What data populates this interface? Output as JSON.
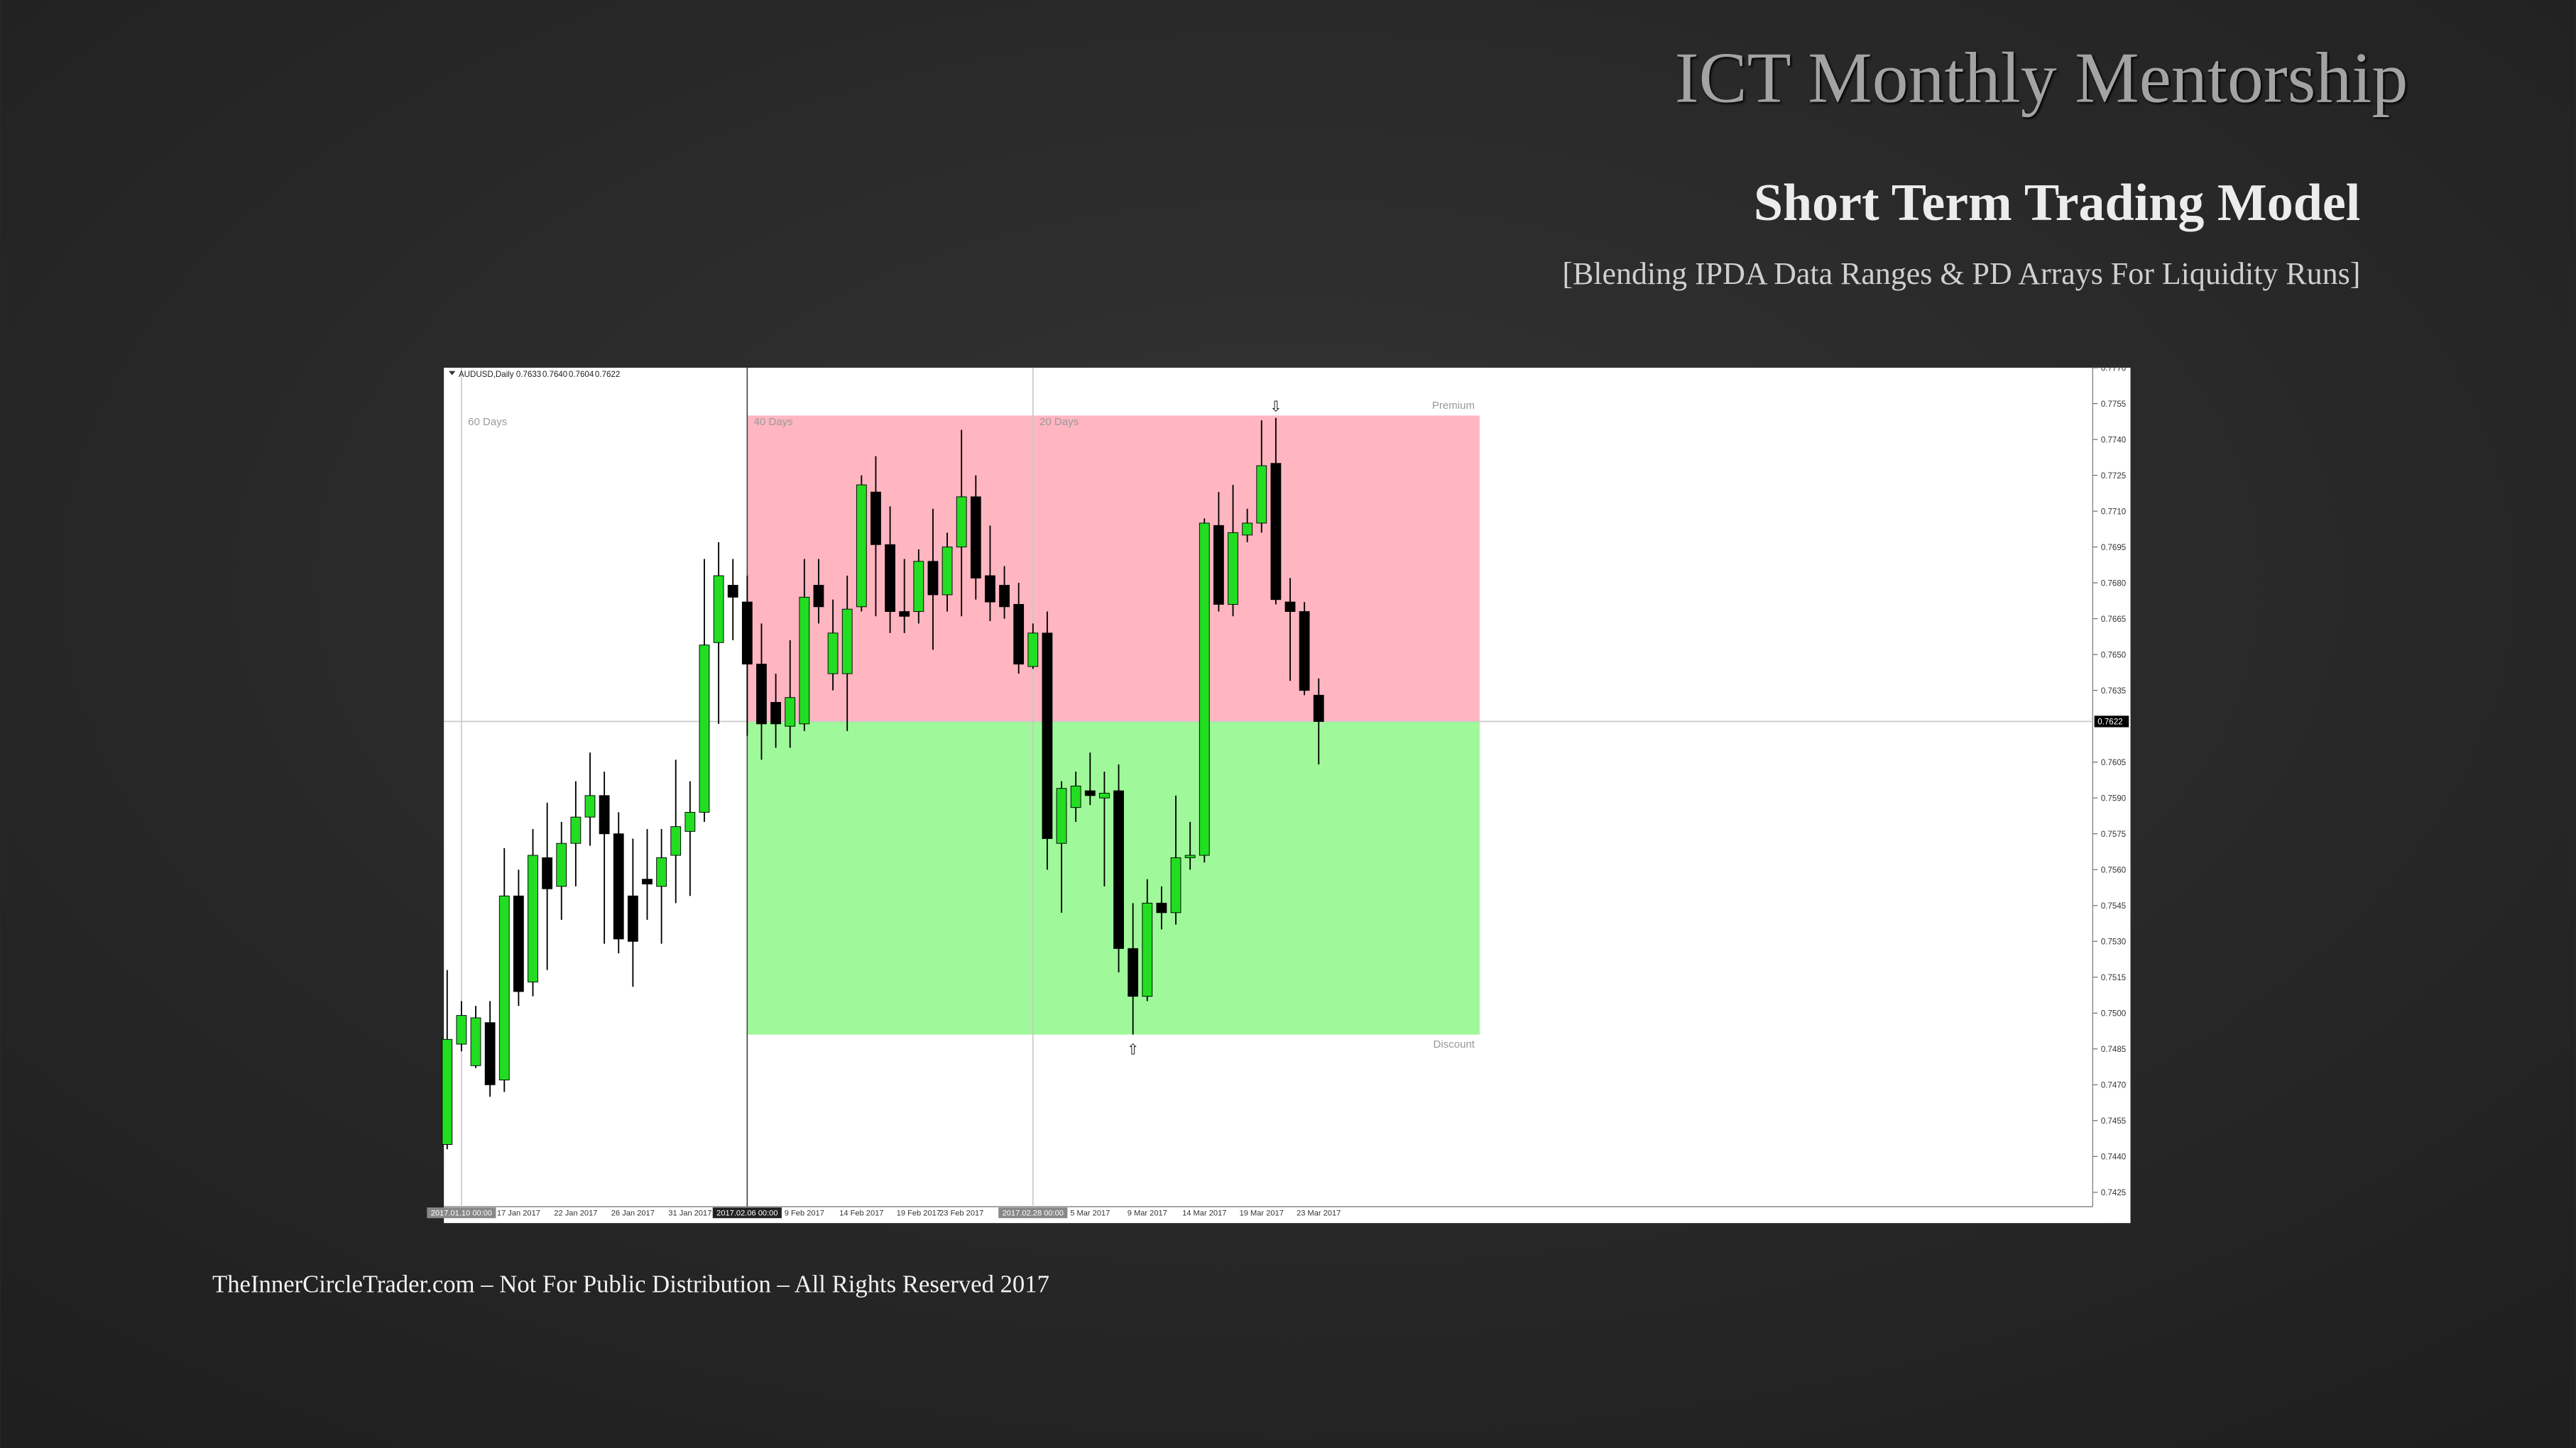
{
  "title": "ICT Monthly Mentorship",
  "subtitle": "Short Term Trading Model",
  "tagline": "[Blending IPDA Data Ranges & PD Arrays For Liquidity Runs]",
  "footer": "TheInnerCircleTrader.com – Not For Public Distribution – All Rights Reserved 2017",
  "chart_data": {
    "type": "candlestick",
    "symbol": "AUDUSD,Daily",
    "info_labels": [
      "0.7633",
      "0.7640",
      "0.7604",
      "0.7622"
    ],
    "up_color": "#22dd22",
    "down_color": "#000000",
    "ylim": [
      0.7419,
      0.777
    ],
    "yticks": [
      0.7425,
      {
        "value": 0.744,
        "label": "0.7440"
      },
      0.7455,
      {
        "value": 0.747,
        "label": "0.7470"
      },
      0.7485,
      {
        "value": 0.75,
        "label": "0.7500"
      },
      0.7515,
      {
        "value": 0.753,
        "label": "0.7530"
      },
      0.7545,
      {
        "value": 0.756,
        "label": "0.7560"
      },
      0.7575,
      {
        "value": 0.759,
        "label": "0.7590"
      },
      0.7605,
      0.7635,
      {
        "value": 0.765,
        "label": "0.7650"
      },
      0.7665,
      {
        "value": 0.768,
        "label": "0.7680"
      },
      0.7695,
      {
        "value": 0.771,
        "label": "0.7710"
      },
      0.7725,
      {
        "value": 0.774,
        "label": "0.7740"
      },
      0.7755,
      {
        "value": 0.777,
        "label": "0.7770"
      }
    ],
    "last_price": {
      "value": 0.7622,
      "label": "0.7622"
    },
    "zones": {
      "top": 0.775,
      "mid": 0.7622,
      "bottom": 0.7491,
      "top_label": "Premium",
      "bottom_label": "Discount",
      "top_color": "#ffb6c1",
      "bottom_color": "#9ff99a"
    },
    "day_lines": [
      {
        "label": "60 Days",
        "at": 1,
        "date": "2017.01.10 00:00"
      },
      {
        "label": "40 Days",
        "at": 21,
        "date": "2017.02.06 00:00"
      },
      {
        "label": "20 Days",
        "at": 41,
        "date": "2017.02.28 00:00"
      }
    ],
    "arrows": [
      {
        "at": 58,
        "symbol": "⇩",
        "side": "above"
      },
      {
        "at": 48,
        "symbol": "⇧",
        "side": "below"
      }
    ],
    "categories": [
      null,
      null,
      null,
      null,
      null,
      "17 Jan 2017",
      null,
      null,
      null,
      "22 Jan 2017",
      null,
      null,
      null,
      "26 Jan 2017",
      null,
      null,
      null,
      "31 Jan 2017",
      null,
      null,
      null,
      null,
      null,
      null,
      null,
      "9 Feb 2017",
      null,
      null,
      null,
      "14 Feb 2017",
      null,
      null,
      null,
      "19 Feb 2017",
      null,
      null,
      "23 Feb 2017",
      null,
      null,
      null,
      null,
      null,
      null,
      null,
      null,
      "5 Mar 2017",
      null,
      null,
      null,
      "9 Mar 2017",
      null,
      null,
      null,
      "14 Mar 2017",
      null,
      null,
      null,
      "19 Mar 2017",
      null,
      null,
      null,
      "23 Mar 2017"
    ],
    "candles": [
      {
        "open": 0.7445,
        "high": 0.7518,
        "low": 0.7443,
        "close": 0.7489
      },
      {
        "open": 0.7487,
        "high": 0.7505,
        "low": 0.7484,
        "close": 0.7499
      },
      {
        "open": 0.7478,
        "high": 0.7503,
        "low": 0.7477,
        "close": 0.7498
      },
      {
        "open": 0.7496,
        "high": 0.7505,
        "low": 0.7465,
        "close": 0.747
      },
      {
        "open": 0.7472,
        "high": 0.7569,
        "low": 0.7467,
        "close": 0.7549
      },
      {
        "open": 0.7549,
        "high": 0.756,
        "low": 0.7503,
        "close": 0.7509
      },
      {
        "open": 0.7513,
        "high": 0.7577,
        "low": 0.7507,
        "close": 0.7566
      },
      {
        "open": 0.7565,
        "high": 0.7588,
        "low": 0.7518,
        "close": 0.7552
      },
      {
        "open": 0.7553,
        "high": 0.758,
        "low": 0.7539,
        "close": 0.7571
      },
      {
        "open": 0.7571,
        "high": 0.7597,
        "low": 0.7553,
        "close": 0.7582
      },
      {
        "open": 0.7582,
        "high": 0.7609,
        "low": 0.757,
        "close": 0.7591
      },
      {
        "open": 0.7591,
        "high": 0.7601,
        "low": 0.7529,
        "close": 0.7575
      },
      {
        "open": 0.7575,
        "high": 0.7584,
        "low": 0.7525,
        "close": 0.7531
      },
      {
        "open": 0.7549,
        "high": 0.7573,
        "low": 0.7511,
        "close": 0.753
      },
      {
        "open": 0.7556,
        "high": 0.7577,
        "low": 0.7539,
        "close": 0.7554
      },
      {
        "open": 0.7553,
        "high": 0.7577,
        "low": 0.7529,
        "close": 0.7565
      },
      {
        "open": 0.7566,
        "high": 0.7606,
        "low": 0.7546,
        "close": 0.7578
      },
      {
        "open": 0.7576,
        "high": 0.7597,
        "low": 0.7549,
        "close": 0.7584
      },
      {
        "open": 0.7584,
        "high": 0.769,
        "low": 0.758,
        "close": 0.7654
      },
      {
        "open": 0.7655,
        "high": 0.7697,
        "low": 0.7621,
        "close": 0.7683
      },
      {
        "open": 0.7679,
        "high": 0.769,
        "low": 0.7656,
        "close": 0.7674
      },
      {
        "open": 0.7672,
        "high": 0.7683,
        "low": 0.7616,
        "close": 0.7646
      },
      {
        "open": 0.7646,
        "high": 0.7663,
        "low": 0.7606,
        "close": 0.7621
      },
      {
        "open": 0.763,
        "high": 0.7642,
        "low": 0.7611,
        "close": 0.7621
      },
      {
        "open": 0.762,
        "high": 0.7656,
        "low": 0.7611,
        "close": 0.7632
      },
      {
        "open": 0.7621,
        "high": 0.769,
        "low": 0.7618,
        "close": 0.7674
      },
      {
        "open": 0.7679,
        "high": 0.769,
        "low": 0.7663,
        "close": 0.767
      },
      {
        "open": 0.7642,
        "high": 0.7673,
        "low": 0.7635,
        "close": 0.7659
      },
      {
        "open": 0.7642,
        "high": 0.7683,
        "low": 0.7618,
        "close": 0.7669
      },
      {
        "open": 0.767,
        "high": 0.7725,
        "low": 0.7668,
        "close": 0.7721
      },
      {
        "open": 0.7718,
        "high": 0.7733,
        "low": 0.7666,
        "close": 0.7696
      },
      {
        "open": 0.7696,
        "high": 0.7712,
        "low": 0.7659,
        "close": 0.7668
      },
      {
        "open": 0.7668,
        "high": 0.769,
        "low": 0.7659,
        "close": 0.7666
      },
      {
        "open": 0.7668,
        "high": 0.7694,
        "low": 0.7663,
        "close": 0.7689
      },
      {
        "open": 0.7689,
        "high": 0.7711,
        "low": 0.7652,
        "close": 0.7675
      },
      {
        "open": 0.7675,
        "high": 0.7701,
        "low": 0.7668,
        "close": 0.7695
      },
      {
        "open": 0.7695,
        "high": 0.7744,
        "low": 0.7666,
        "close": 0.7716
      },
      {
        "open": 0.7716,
        "high": 0.7725,
        "low": 0.7673,
        "close": 0.7682
      },
      {
        "open": 0.7683,
        "high": 0.7704,
        "low": 0.7664,
        "close": 0.7672
      },
      {
        "open": 0.7679,
        "high": 0.7687,
        "low": 0.7665,
        "close": 0.767
      },
      {
        "open": 0.7671,
        "high": 0.768,
        "low": 0.7642,
        "close": 0.7646
      },
      {
        "open": 0.7645,
        "high": 0.7663,
        "low": 0.7644,
        "close": 0.7659
      },
      {
        "open": 0.7659,
        "high": 0.7668,
        "low": 0.756,
        "close": 0.7573
      },
      {
        "open": 0.7571,
        "high": 0.7597,
        "low": 0.7542,
        "close": 0.7594
      },
      {
        "open": 0.7586,
        "high": 0.7601,
        "low": 0.758,
        "close": 0.7595
      },
      {
        "open": 0.7593,
        "high": 0.7609,
        "low": 0.7587,
        "close": 0.7591
      },
      {
        "open": 0.759,
        "high": 0.7601,
        "low": 0.7553,
        "close": 0.7592
      },
      {
        "open": 0.7593,
        "high": 0.7604,
        "low": 0.7517,
        "close": 0.7527
      },
      {
        "open": 0.7527,
        "high": 0.7546,
        "low": 0.7491,
        "close": 0.7507
      },
      {
        "open": 0.7507,
        "high": 0.7556,
        "low": 0.7505,
        "close": 0.7546
      },
      {
        "open": 0.7546,
        "high": 0.7553,
        "low": 0.7535,
        "close": 0.7542
      },
      {
        "open": 0.7542,
        "high": 0.7591,
        "low": 0.7537,
        "close": 0.7565
      },
      {
        "open": 0.7565,
        "high": 0.758,
        "low": 0.756,
        "close": 0.7566
      },
      {
        "open": 0.7566,
        "high": 0.7707,
        "low": 0.7563,
        "close": 0.7705
      },
      {
        "open": 0.7704,
        "high": 0.7718,
        "low": 0.7668,
        "close": 0.7671
      },
      {
        "open": 0.7671,
        "high": 0.7721,
        "low": 0.7666,
        "close": 0.7701
      },
      {
        "open": 0.77,
        "high": 0.7711,
        "low": 0.7697,
        "close": 0.7705
      },
      {
        "open": 0.7705,
        "high": 0.7748,
        "low": 0.7701,
        "close": 0.7729
      },
      {
        "open": 0.773,
        "high": 0.7749,
        "low": 0.7671,
        "close": 0.7673
      },
      {
        "open": 0.7672,
        "high": 0.7682,
        "low": 0.7639,
        "close": 0.7668
      },
      {
        "open": 0.7668,
        "high": 0.7672,
        "low": 0.7633,
        "close": 0.7635
      },
      {
        "open": 0.7633,
        "high": 0.764,
        "low": 0.7604,
        "close": 0.7622
      }
    ]
  }
}
